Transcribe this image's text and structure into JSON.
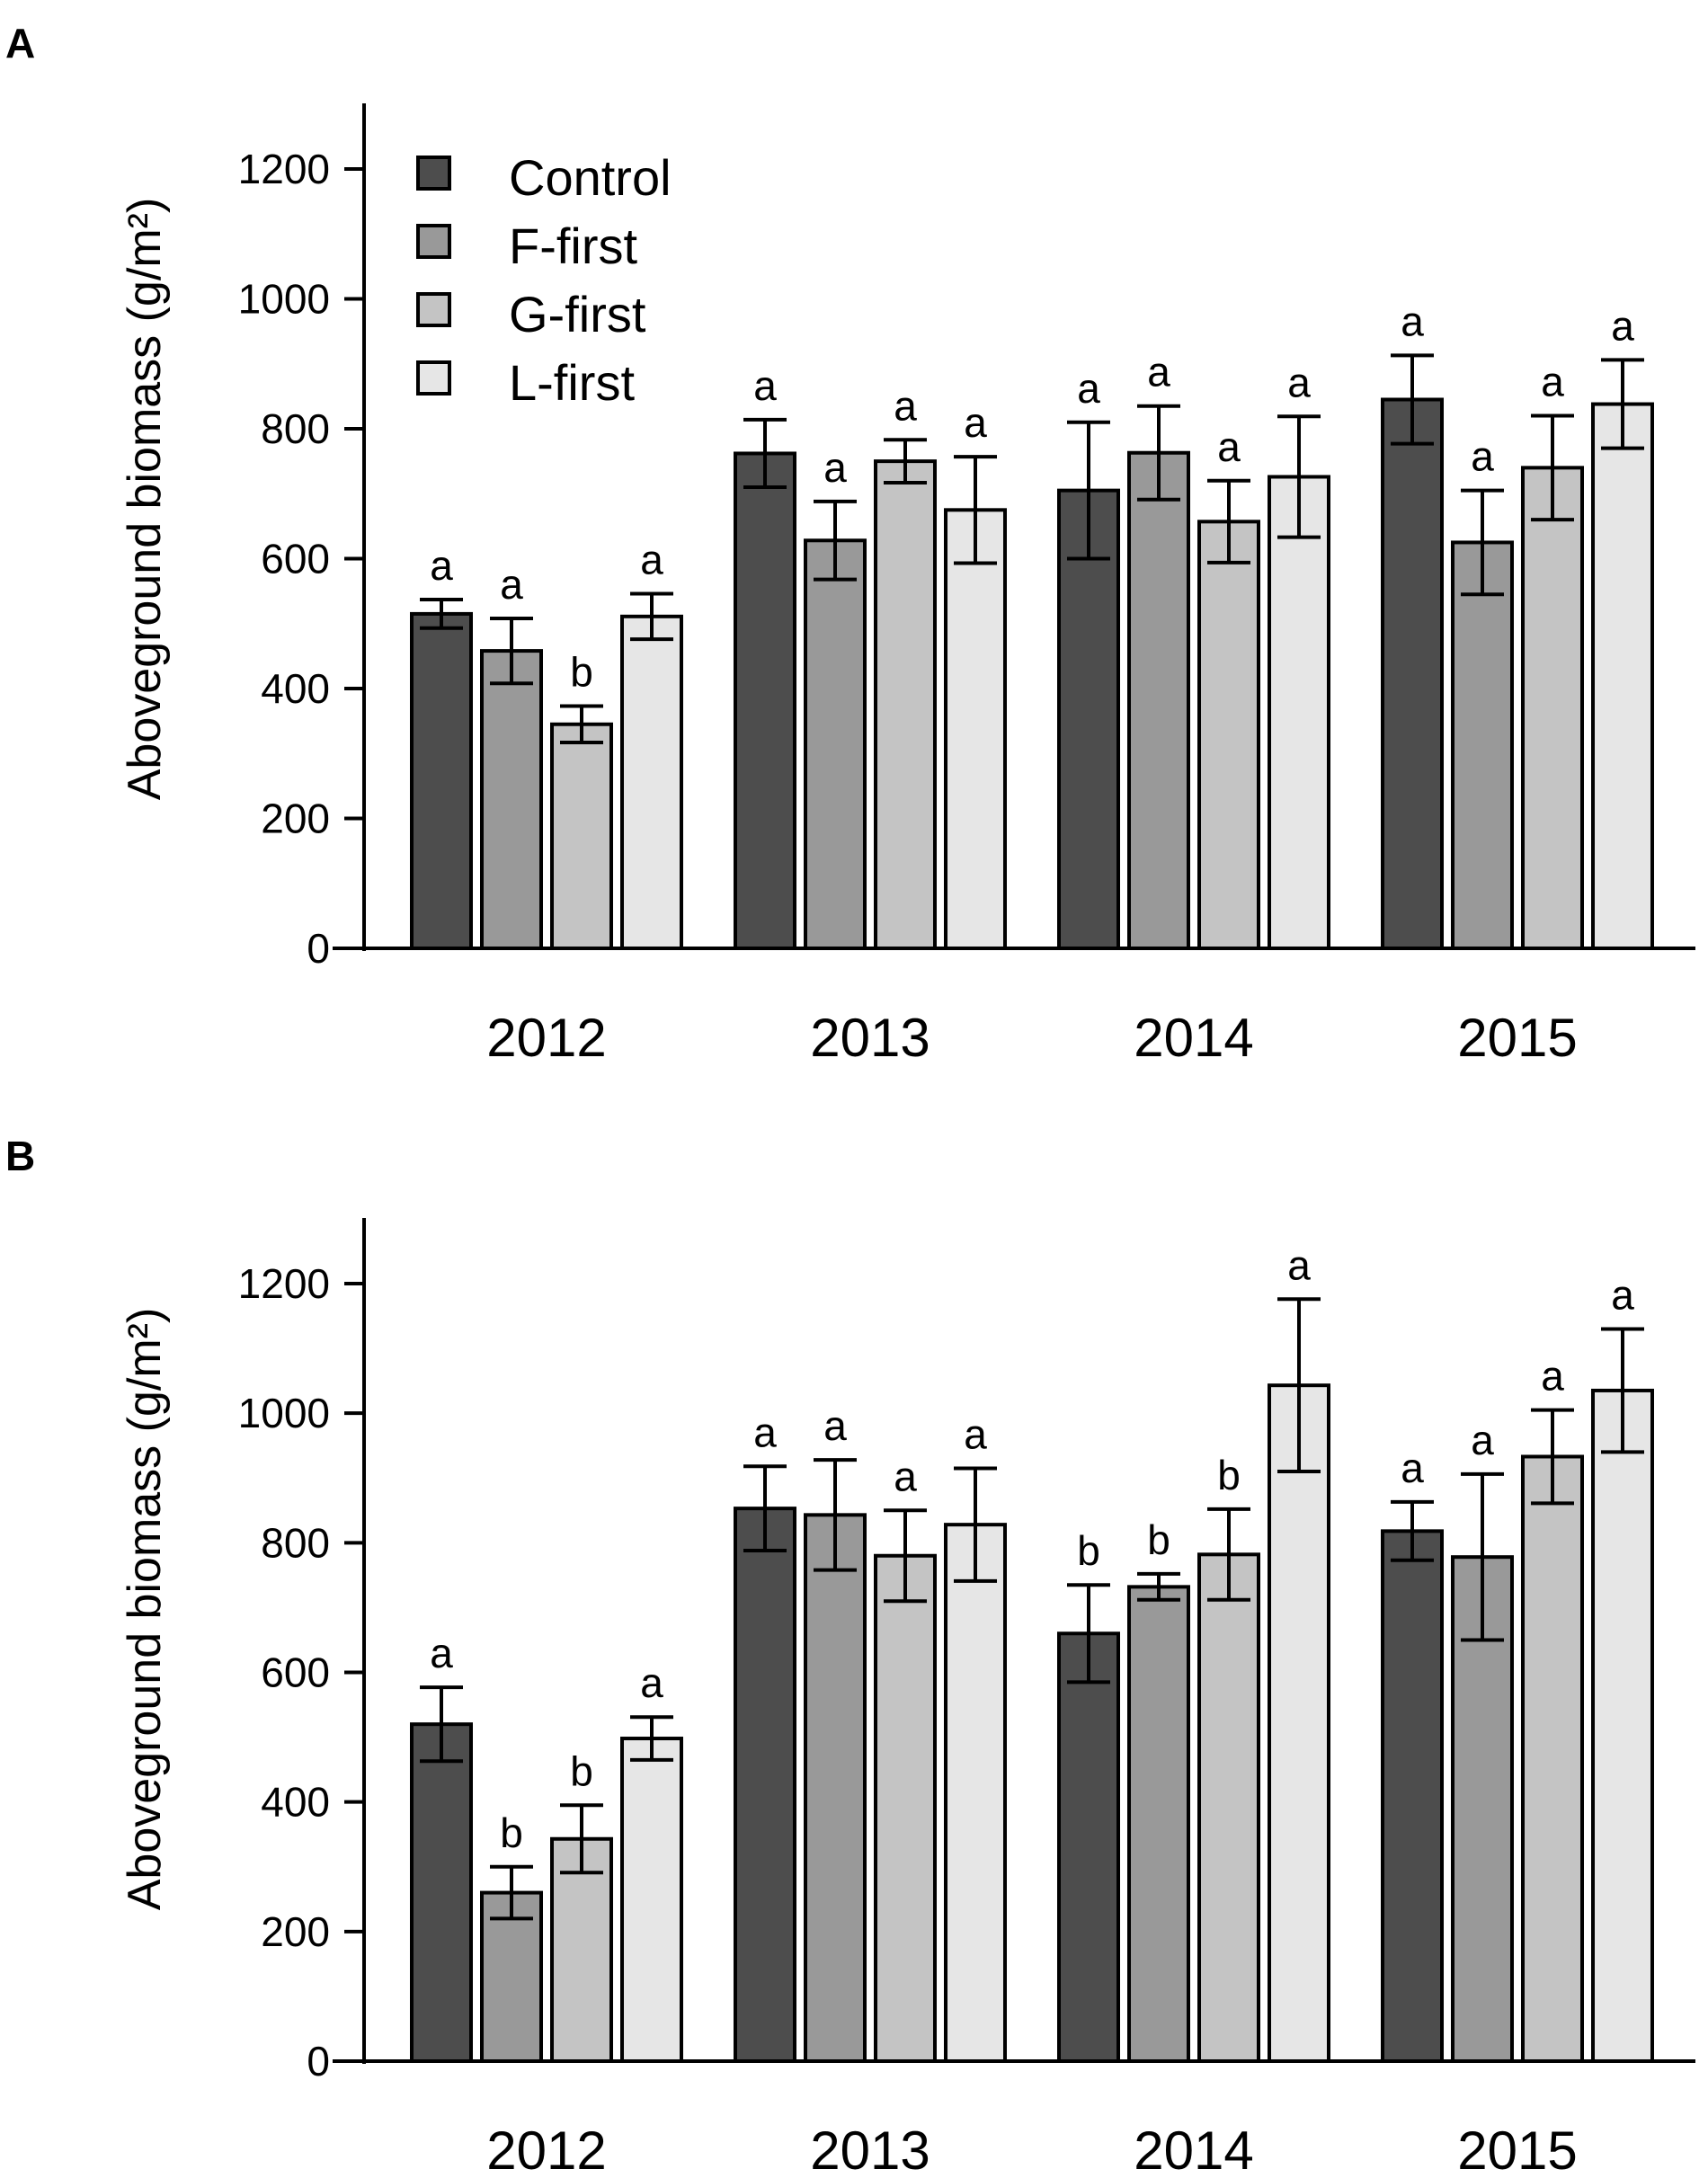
{
  "colors": {
    "Control": "#4d4d4d",
    "F-first": "#999999",
    "G-first": "#c4c4c4",
    "L-first": "#e6e6e6",
    "stroke": "#000000"
  },
  "chart_data": [
    {
      "panel": "A",
      "type": "bar",
      "ylabel": "Aboveground biomass (g/m²)",
      "xlabel": "",
      "ylim": [
        0,
        1300
      ],
      "yticks": [
        "0",
        "200",
        "400",
        "600",
        "800",
        "1000",
        "1200"
      ],
      "categories": [
        "2012",
        "2013",
        "2014",
        "2015"
      ],
      "legend": {
        "position": "top-left",
        "entries": [
          "Control",
          "F-first",
          "G-first",
          "L-first"
        ]
      },
      "series": [
        {
          "name": "Control",
          "values": [
            515,
            762,
            705,
            845
          ],
          "errors": [
            22,
            52,
            105,
            68
          ],
          "letters": [
            "a",
            "a",
            "a",
            "a"
          ]
        },
        {
          "name": "F-first",
          "values": [
            458,
            628,
            763,
            625
          ],
          "errors": [
            50,
            60,
            72,
            80
          ],
          "letters": [
            "a",
            "a",
            "a",
            "a"
          ]
        },
        {
          "name": "G-first",
          "values": [
            345,
            750,
            657,
            740
          ],
          "errors": [
            28,
            33,
            63,
            80
          ],
          "letters": [
            "b",
            "a",
            "a",
            "a"
          ]
        },
        {
          "name": "L-first",
          "values": [
            511,
            675,
            726,
            838
          ],
          "errors": [
            35,
            82,
            93,
            68
          ],
          "letters": [
            "a",
            "a",
            "a",
            "a"
          ]
        }
      ]
    },
    {
      "panel": "B",
      "type": "bar",
      "ylabel": "Aboveground biomass (g/m²)",
      "xlabel": "",
      "ylim": [
        0,
        1300
      ],
      "yticks": [
        "0",
        "200",
        "400",
        "600",
        "800",
        "1000",
        "1200"
      ],
      "categories": [
        "2012",
        "2013",
        "2014",
        "2015"
      ],
      "series": [
        {
          "name": "Control",
          "values": [
            520,
            853,
            660,
            818
          ],
          "errors": [
            57,
            65,
            75,
            45
          ],
          "letters": [
            "a",
            "a",
            "b",
            "a"
          ]
        },
        {
          "name": "F-first",
          "values": [
            260,
            843,
            732,
            778
          ],
          "errors": [
            40,
            85,
            20,
            128
          ],
          "letters": [
            "b",
            "a",
            "b",
            "a"
          ]
        },
        {
          "name": "G-first",
          "values": [
            343,
            780,
            782,
            933
          ],
          "errors": [
            52,
            70,
            70,
            72
          ],
          "letters": [
            "b",
            "a",
            "b",
            "a"
          ]
        },
        {
          "name": "L-first",
          "values": [
            498,
            828,
            1043,
            1035
          ],
          "errors": [
            33,
            87,
            133,
            95
          ],
          "letters": [
            "a",
            "a",
            "a",
            "a"
          ]
        }
      ]
    }
  ]
}
